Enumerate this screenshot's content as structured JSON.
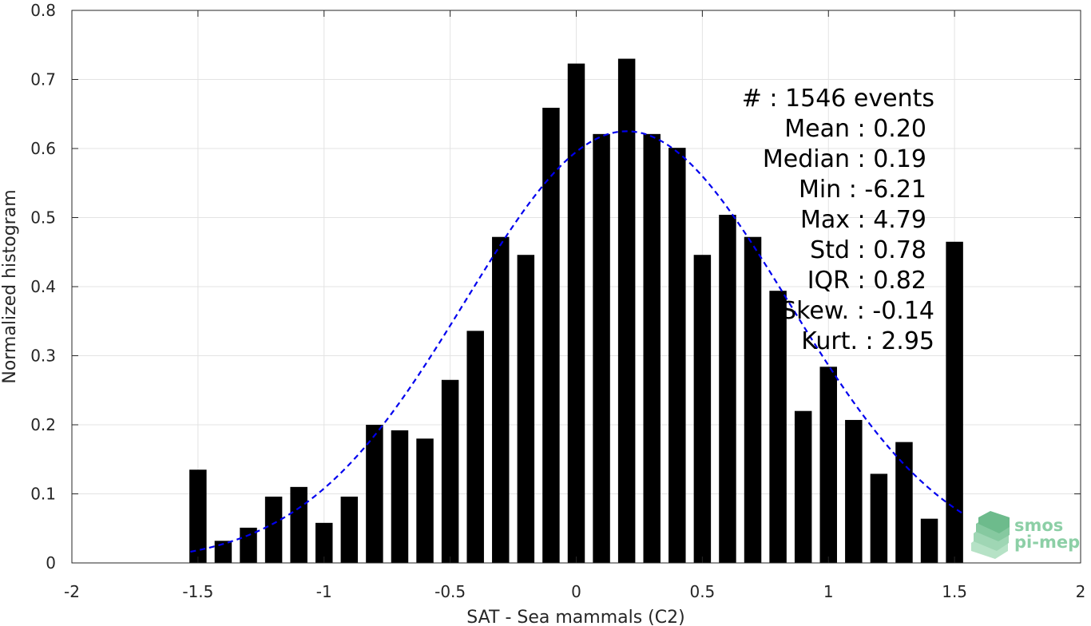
{
  "chart_data": {
    "type": "bar",
    "xlabel": "SAT - Sea mammals (C2)",
    "ylabel": "Normalized histogram",
    "xlim": [
      -2,
      2
    ],
    "ylim": [
      0,
      0.8
    ],
    "xticks": [
      -2,
      -1.5,
      -1,
      -0.5,
      0,
      0.5,
      1,
      1.5,
      2
    ],
    "xtick_labels": [
      "-2",
      "-1.5",
      "-1",
      "-0.5",
      "0",
      "0.5",
      "1",
      "1.5",
      "2"
    ],
    "yticks": [
      0,
      0.1,
      0.2,
      0.3,
      0.4,
      0.5,
      0.6,
      0.7,
      0.8
    ],
    "ytick_labels": [
      "0",
      "0.1",
      "0.2",
      "0.3",
      "0.4",
      "0.5",
      "0.6",
      "0.7",
      "0.8"
    ],
    "grid": true,
    "bar_color": "#000000",
    "bin_width": 0.1,
    "bins": [
      {
        "x": -1.5,
        "y": 0.135
      },
      {
        "x": -1.4,
        "y": 0.032
      },
      {
        "x": -1.3,
        "y": 0.051
      },
      {
        "x": -1.2,
        "y": 0.096
      },
      {
        "x": -1.1,
        "y": 0.11
      },
      {
        "x": -1.0,
        "y": 0.058
      },
      {
        "x": -0.9,
        "y": 0.096
      },
      {
        "x": -0.8,
        "y": 0.2
      },
      {
        "x": -0.7,
        "y": 0.192
      },
      {
        "x": -0.6,
        "y": 0.18
      },
      {
        "x": -0.5,
        "y": 0.265
      },
      {
        "x": -0.4,
        "y": 0.336
      },
      {
        "x": -0.3,
        "y": 0.472
      },
      {
        "x": -0.2,
        "y": 0.446
      },
      {
        "x": -0.1,
        "y": 0.659
      },
      {
        "x": 0.0,
        "y": 0.723
      },
      {
        "x": 0.1,
        "y": 0.621
      },
      {
        "x": 0.2,
        "y": 0.73
      },
      {
        "x": 0.3,
        "y": 0.621
      },
      {
        "x": 0.4,
        "y": 0.601
      },
      {
        "x": 0.5,
        "y": 0.446
      },
      {
        "x": 0.6,
        "y": 0.504
      },
      {
        "x": 0.7,
        "y": 0.472
      },
      {
        "x": 0.8,
        "y": 0.394
      },
      {
        "x": 0.9,
        "y": 0.22
      },
      {
        "x": 1.0,
        "y": 0.284
      },
      {
        "x": 1.1,
        "y": 0.207
      },
      {
        "x": 1.2,
        "y": 0.129
      },
      {
        "x": 1.3,
        "y": 0.175
      },
      {
        "x": 1.4,
        "y": 0.064
      },
      {
        "x": 1.5,
        "y": 0.465
      }
    ],
    "fit_curve": {
      "type": "gaussian",
      "style": "dashed",
      "color": "#0000ee",
      "mean": 0.2,
      "std": 0.64,
      "peak": 0.625,
      "x_range": [
        -1.53,
        1.53
      ]
    },
    "stats": [
      {
        "label": "#  : 1546 events",
        "align": "end-anchor-a"
      },
      {
        "label": "Mean : 0.20",
        "align": "end-anchor-b"
      },
      {
        "label": "Median : 0.19",
        "align": "end-anchor-b"
      },
      {
        "label": "Min : -6.21",
        "align": "end-anchor-b"
      },
      {
        "label": "Max : 4.79",
        "align": "end-anchor-b"
      },
      {
        "label": "Std : 0.78",
        "align": "end-anchor-b"
      },
      {
        "label": "IQR : 0.82",
        "align": "end-anchor-b"
      },
      {
        "label": "Skew. : -0.14",
        "align": "end-anchor-a"
      },
      {
        "label": "Kurt. : 2.95",
        "align": "end-anchor-a"
      }
    ]
  },
  "logo": {
    "line1": "smos",
    "line2": "pi-mep"
  }
}
